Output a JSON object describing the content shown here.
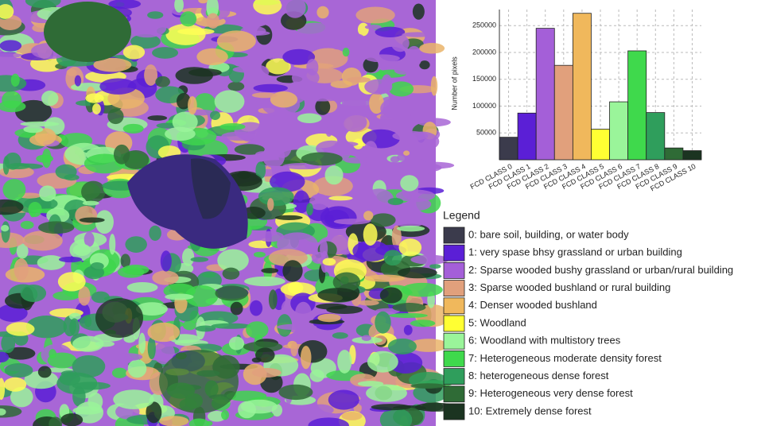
{
  "chart_data": {
    "type": "bar",
    "y_label": "Number of pixels",
    "categories": [
      "FCD CLASS 0",
      "FCD CLASS 1",
      "FCD CLASS 2",
      "FCD CLASS 3",
      "FCD CLASS 4",
      "FCD CLASS 5",
      "FCD CLASS 6",
      "FCD CLASS 7",
      "FCD CLASS 8",
      "FCD CLASS 9",
      "FCD CLASS 10"
    ],
    "values": [
      42000,
      87000,
      245000,
      176000,
      273000,
      57000,
      108000,
      203000,
      88000,
      22000,
      17000
    ],
    "colors": [
      "#3b3b4c",
      "#5b1fd6",
      "#a45fd8",
      "#e1a07c",
      "#f0b85c",
      "#ffff33",
      "#9af59a",
      "#3fd94c",
      "#2f9e5c",
      "#2f6b36",
      "#1b3421"
    ],
    "ylim": [
      0,
      280000
    ],
    "yticks": [
      50000,
      100000,
      150000,
      200000,
      250000
    ],
    "grid": true
  },
  "legend": {
    "title": "Legend",
    "items": [
      "0: bare soil, building, or water body",
      "1: very spase bhsy grassland or urban building",
      "2: Sparse wooded bushy grassland or urban/rural building",
      "3: Sparse wooded bushland or rural building",
      "4: Denser wooded bushland",
      "5: Woodland",
      "6: Woodland with multistory trees",
      "7: Heterogeneous moderate density forest",
      "8: heterogeneous dense forest",
      "9: Heterogeneous very dense forest",
      "10: Extremely dense forest"
    ]
  }
}
